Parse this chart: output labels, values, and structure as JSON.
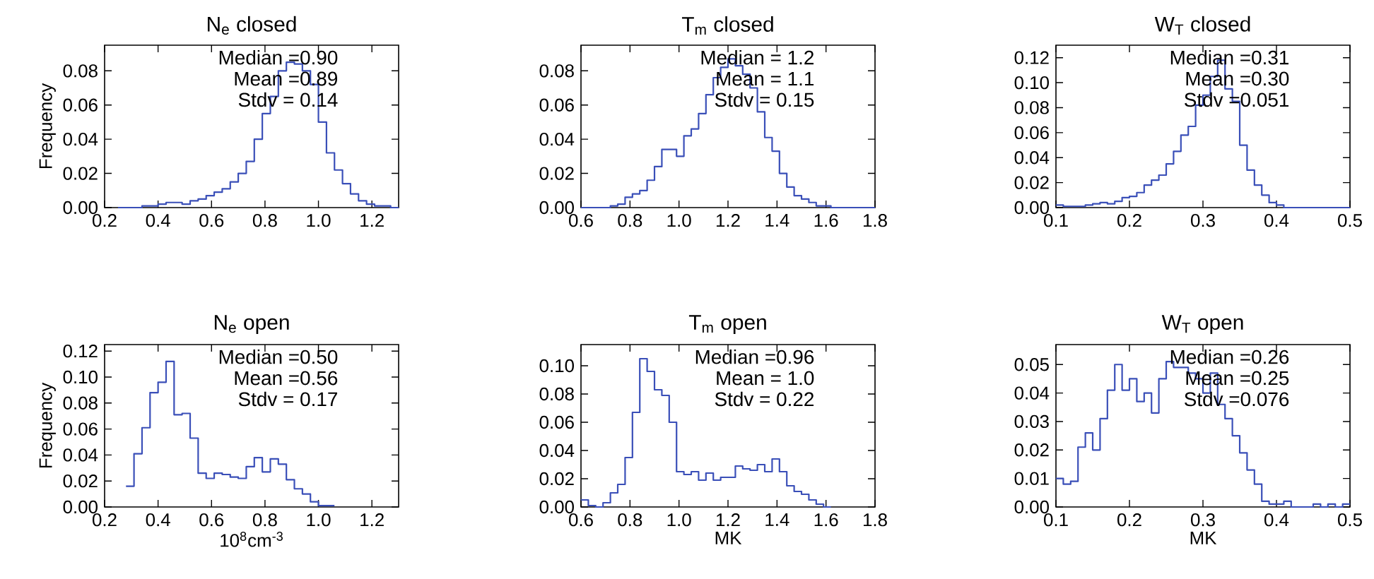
{
  "chart_data": [
    {
      "type": "histogram",
      "title": "N$_{e}$ closed",
      "ylabel": "Frequency",
      "color": "#3a4fb8",
      "bins": [
        0.25,
        0.28,
        0.31,
        0.34,
        0.37,
        0.4,
        0.43,
        0.46,
        0.49,
        0.52,
        0.55,
        0.58,
        0.61,
        0.64,
        0.67,
        0.7,
        0.73,
        0.76,
        0.79,
        0.82,
        0.85,
        0.88,
        0.91,
        0.94,
        0.97,
        1.0,
        1.03,
        1.06,
        1.09,
        1.12,
        1.15,
        1.18,
        1.21,
        1.24,
        1.27,
        1.3
      ],
      "values": [
        0,
        0,
        0,
        0.001,
        0.001,
        0.002,
        0.003,
        0.003,
        0.002,
        0.004,
        0.005,
        0.007,
        0.009,
        0.011,
        0.015,
        0.02,
        0.027,
        0.04,
        0.055,
        0.065,
        0.08,
        0.085,
        0.084,
        0.08,
        0.072,
        0.05,
        0.032,
        0.022,
        0.014,
        0.008,
        0.004,
        0.002,
        0.001,
        0.001,
        0
      ],
      "xlim": [
        0.2,
        1.3
      ],
      "xticks": [
        {
          "value": 0.2,
          "label": "0.2"
        },
        {
          "value": 0.4,
          "label": "0.4"
        },
        {
          "value": 0.6,
          "label": "0.6"
        },
        {
          "value": 0.8,
          "label": "0.8"
        },
        {
          "value": 1.0,
          "label": "1.0"
        },
        {
          "value": 1.2,
          "label": "1.2"
        }
      ],
      "ylim": [
        0,
        0.095
      ],
      "yticks": [
        {
          "value": 0,
          "label": "0.00"
        },
        {
          "value": 0.02,
          "label": "0.02"
        },
        {
          "value": 0.04,
          "label": "0.04"
        },
        {
          "value": 0.06,
          "label": "0.06"
        },
        {
          "value": 0.08,
          "label": "0.08"
        }
      ],
      "annotations": [
        "Median =0.90",
        "Mean =0.89",
        "Stdv = 0.14"
      ]
    },
    {
      "type": "histogram",
      "title": "T$_{m}$ closed",
      "color": "#3a4fb8",
      "bins": [
        0.6,
        0.63,
        0.66,
        0.69,
        0.72,
        0.75,
        0.78,
        0.81,
        0.84,
        0.87,
        0.9,
        0.93,
        0.96,
        0.99,
        1.02,
        1.05,
        1.08,
        1.11,
        1.14,
        1.17,
        1.2,
        1.23,
        1.26,
        1.29,
        1.32,
        1.35,
        1.38,
        1.41,
        1.44,
        1.47,
        1.5,
        1.53,
        1.56,
        1.59,
        1.62,
        1.65,
        1.68,
        1.71,
        1.74,
        1.77,
        1.8
      ],
      "values": [
        0,
        0,
        0,
        0,
        0.001,
        0.002,
        0.006,
        0.008,
        0.01,
        0.016,
        0.024,
        0.034,
        0.034,
        0.03,
        0.042,
        0.046,
        0.055,
        0.066,
        0.076,
        0.082,
        0.087,
        0.083,
        0.078,
        0.07,
        0.056,
        0.041,
        0.033,
        0.02,
        0.012,
        0.007,
        0.005,
        0.003,
        0.001,
        0.001,
        0,
        0,
        0,
        0,
        0,
        0
      ],
      "xlim": [
        0.6,
        1.8
      ],
      "xticks": [
        {
          "value": 0.6,
          "label": "0.6"
        },
        {
          "value": 0.8,
          "label": "0.8"
        },
        {
          "value": 1.0,
          "label": "1.0"
        },
        {
          "value": 1.2,
          "label": "1.2"
        },
        {
          "value": 1.4,
          "label": "1.4"
        },
        {
          "value": 1.6,
          "label": "1.6"
        },
        {
          "value": 1.8,
          "label": "1.8"
        }
      ],
      "ylim": [
        0,
        0.095
      ],
      "yticks": [
        {
          "value": 0,
          "label": "0.00"
        },
        {
          "value": 0.02,
          "label": "0.02"
        },
        {
          "value": 0.04,
          "label": "0.04"
        },
        {
          "value": 0.06,
          "label": "0.06"
        },
        {
          "value": 0.08,
          "label": "0.08"
        }
      ],
      "annotations": [
        "Median = 1.2",
        "Mean = 1.1",
        "Stdv = 0.15"
      ]
    },
    {
      "type": "histogram",
      "title": "W$_{T}$ closed",
      "color": "#3a4fb8",
      "bins": [
        0.1,
        0.11,
        0.12,
        0.13,
        0.14,
        0.15,
        0.16,
        0.17,
        0.18,
        0.19,
        0.2,
        0.21,
        0.22,
        0.23,
        0.24,
        0.25,
        0.26,
        0.27,
        0.28,
        0.29,
        0.3,
        0.31,
        0.32,
        0.33,
        0.34,
        0.35,
        0.36,
        0.37,
        0.38,
        0.39,
        0.4,
        0.41,
        0.42,
        0.43,
        0.44,
        0.45,
        0.46,
        0.47,
        0.48,
        0.49,
        0.5
      ],
      "values": [
        0.002,
        0.001,
        0.001,
        0.001,
        0.002,
        0.003,
        0.004,
        0.003,
        0.005,
        0.008,
        0.009,
        0.012,
        0.018,
        0.022,
        0.026,
        0.035,
        0.045,
        0.058,
        0.065,
        0.082,
        0.09,
        0.105,
        0.118,
        0.095,
        0.085,
        0.05,
        0.03,
        0.018,
        0.01,
        0.004,
        0.002,
        0,
        0,
        0,
        0,
        0,
        0,
        0,
        0,
        0
      ],
      "xlim": [
        0.1,
        0.5
      ],
      "xticks": [
        0.1,
        0.2,
        0.3,
        0.4,
        0.5
      ],
      "ylim": [
        0,
        0.13
      ],
      "yticks": [
        {
          "value": 0,
          "label": "0.00"
        },
        {
          "value": 0.02,
          "label": "0.02"
        },
        {
          "value": 0.04,
          "label": "0.04"
        },
        {
          "value": 0.06,
          "label": "0.06"
        },
        {
          "value": 0.08,
          "label": "0.08"
        },
        {
          "value": 0.1,
          "label": "0.10"
        },
        {
          "value": 0.12,
          "label": "0.12"
        }
      ],
      "annotations": [
        "Median =0.31",
        "Mean =0.30",
        "Stdv =0.051"
      ]
    },
    {
      "type": "histogram",
      "title": "N$_{e}$ open",
      "ylabel": "Frequency",
      "xlabel": "10$^{8}$cm$^{-3}$",
      "color": "#3a4fb8",
      "bins": [
        0.28,
        0.31,
        0.34,
        0.37,
        0.4,
        0.43,
        0.46,
        0.49,
        0.52,
        0.55,
        0.58,
        0.61,
        0.64,
        0.67,
        0.7,
        0.73,
        0.76,
        0.79,
        0.82,
        0.85,
        0.88,
        0.91,
        0.94,
        0.97,
        1.0,
        1.03,
        1.06
      ],
      "values": [
        0.016,
        0.041,
        0.061,
        0.088,
        0.096,
        0.112,
        0.071,
        0.072,
        0.053,
        0.026,
        0.022,
        0.026,
        0.025,
        0.023,
        0.022,
        0.031,
        0.038,
        0.027,
        0.037,
        0.033,
        0.021,
        0.014,
        0.01,
        0.004,
        0.001,
        0.001
      ],
      "xlim": [
        0.2,
        1.3
      ],
      "xticks": [
        {
          "value": 0.2,
          "label": "0.2"
        },
        {
          "value": 0.4,
          "label": "0.4"
        },
        {
          "value": 0.6,
          "label": "0.6"
        },
        {
          "value": 0.8,
          "label": "0.8"
        },
        {
          "value": 1.0,
          "label": "1.0"
        },
        {
          "value": 1.2,
          "label": "1.2"
        }
      ],
      "ylim": [
        0,
        0.125
      ],
      "yticks": [
        {
          "value": 0,
          "label": "0.00"
        },
        {
          "value": 0.02,
          "label": "0.02"
        },
        {
          "value": 0.04,
          "label": "0.04"
        },
        {
          "value": 0.06,
          "label": "0.06"
        },
        {
          "value": 0.08,
          "label": "0.08"
        },
        {
          "value": 0.1,
          "label": "0.10"
        },
        {
          "value": 0.12,
          "label": "0.12"
        }
      ],
      "annotations": [
        "Median =0.50",
        "Mean =0.56",
        "Stdv = 0.17"
      ]
    },
    {
      "type": "histogram",
      "title": "T$_{m}$ open",
      "xlabel": "MK",
      "color": "#3a4fb8",
      "bins": [
        0.6,
        0.63,
        0.66,
        0.69,
        0.72,
        0.75,
        0.78,
        0.81,
        0.84,
        0.87,
        0.9,
        0.93,
        0.96,
        0.99,
        1.02,
        1.05,
        1.08,
        1.11,
        1.14,
        1.17,
        1.2,
        1.23,
        1.26,
        1.29,
        1.32,
        1.35,
        1.38,
        1.41,
        1.44,
        1.47,
        1.5,
        1.53,
        1.56,
        1.59,
        1.62
      ],
      "values": [
        0.005,
        0.001,
        0,
        0.003,
        0.01,
        0.016,
        0.035,
        0.067,
        0.105,
        0.096,
        0.083,
        0.079,
        0.06,
        0.025,
        0.023,
        0.025,
        0.019,
        0.024,
        0.019,
        0.021,
        0.021,
        0.029,
        0.027,
        0.026,
        0.03,
        0.025,
        0.034,
        0.025,
        0.015,
        0.011,
        0.009,
        0.005,
        0.002,
        0
      ],
      "xlim": [
        0.6,
        1.8
      ],
      "xticks": [
        {
          "value": 0.6,
          "label": "0.6"
        },
        {
          "value": 0.8,
          "label": "0.8"
        },
        {
          "value": 1.0,
          "label": "1.0"
        },
        {
          "value": 1.2,
          "label": "1.2"
        },
        {
          "value": 1.4,
          "label": "1.4"
        },
        {
          "value": 1.6,
          "label": "1.6"
        },
        {
          "value": 1.8,
          "label": "1.8"
        }
      ],
      "ylim": [
        0,
        0.115
      ],
      "yticks": [
        {
          "value": 0,
          "label": "0.00"
        },
        {
          "value": 0.02,
          "label": "0.02"
        },
        {
          "value": 0.04,
          "label": "0.04"
        },
        {
          "value": 0.06,
          "label": "0.06"
        },
        {
          "value": 0.08,
          "label": "0.08"
        },
        {
          "value": 0.1,
          "label": "0.10"
        }
      ],
      "annotations": [
        "Median =0.96",
        "Mean = 1.0",
        "Stdv = 0.22"
      ]
    },
    {
      "type": "histogram",
      "title": "W$_{T}$ open",
      "xlabel": "MK",
      "color": "#3a4fb8",
      "bins": [
        0.1,
        0.11,
        0.12,
        0.13,
        0.14,
        0.15,
        0.16,
        0.17,
        0.18,
        0.19,
        0.2,
        0.21,
        0.22,
        0.23,
        0.24,
        0.25,
        0.26,
        0.27,
        0.28,
        0.29,
        0.3,
        0.31,
        0.32,
        0.33,
        0.34,
        0.35,
        0.36,
        0.37,
        0.38,
        0.39,
        0.4,
        0.41,
        0.42,
        0.43,
        0.44,
        0.45,
        0.46,
        0.47,
        0.48,
        0.49,
        0.5
      ],
      "values": [
        0.01,
        0.008,
        0.009,
        0.021,
        0.026,
        0.02,
        0.031,
        0.041,
        0.05,
        0.041,
        0.045,
        0.037,
        0.04,
        0.033,
        0.045,
        0.051,
        0.049,
        0.049,
        0.047,
        0.045,
        0.04,
        0.047,
        0.036,
        0.031,
        0.025,
        0.019,
        0.013,
        0.008,
        0.002,
        0.001,
        0.001,
        0.002,
        0,
        0,
        0,
        0.001,
        0,
        0.001,
        0,
        0.001
      ],
      "xlim": [
        0.1,
        0.5
      ],
      "xticks": [
        0.1,
        0.2,
        0.3,
        0.4,
        0.5
      ],
      "ylim": [
        0,
        0.057
      ],
      "yticks": [
        {
          "value": 0,
          "label": "0.00"
        },
        {
          "value": 0.01,
          "label": "0.01"
        },
        {
          "value": 0.02,
          "label": "0.02"
        },
        {
          "value": 0.03,
          "label": "0.03"
        },
        {
          "value": 0.04,
          "label": "0.04"
        },
        {
          "value": 0.05,
          "label": "0.05"
        }
      ],
      "annotations": [
        "Median =0.26",
        "Mean =0.25",
        "Stdv =0.076"
      ]
    }
  ]
}
